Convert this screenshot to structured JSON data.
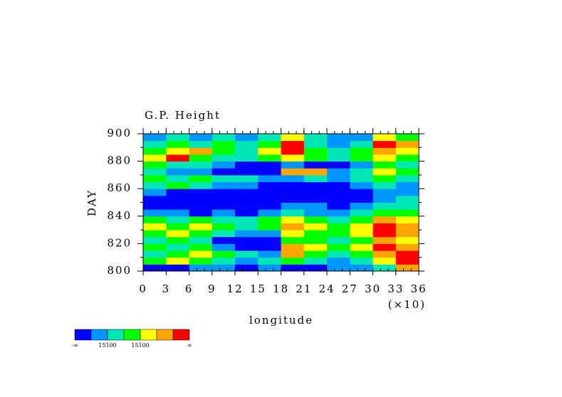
{
  "chart_data": {
    "type": "heatmap",
    "title": "G.P. Height",
    "xlabel": "longitude",
    "xscale_note": "(×10)",
    "ylabel": "DAY",
    "xlim": [
      0,
      36
    ],
    "xticks": [
      0,
      3,
      6,
      9,
      12,
      15,
      18,
      21,
      24,
      27,
      30,
      33,
      36
    ],
    "ylim": [
      800,
      900
    ],
    "yticks": [
      800,
      820,
      840,
      860,
      880,
      900
    ],
    "colors": [
      "#0000ff",
      "#0096ff",
      "#00e6b4",
      "#00ff00",
      "#ffff00",
      "#ffa500",
      "#ff0000"
    ],
    "z": [
      [
        0,
        0,
        1,
        1,
        0,
        1,
        0,
        0,
        1,
        1,
        2,
        5
      ],
      [
        3,
        4,
        3,
        2,
        1,
        2,
        3,
        2,
        1,
        2,
        4,
        6
      ],
      [
        2,
        3,
        4,
        3,
        2,
        1,
        5,
        3,
        2,
        3,
        5,
        6
      ],
      [
        3,
        2,
        3,
        1,
        0,
        0,
        5,
        4,
        3,
        4,
        6,
        5
      ],
      [
        2,
        3,
        2,
        0,
        0,
        0,
        3,
        3,
        2,
        3,
        5,
        4
      ],
      [
        3,
        4,
        3,
        2,
        1,
        1,
        4,
        3,
        3,
        4,
        6,
        5
      ],
      [
        4,
        3,
        4,
        3,
        2,
        3,
        5,
        4,
        3,
        4,
        6,
        5
      ],
      [
        3,
        2,
        3,
        2,
        2,
        3,
        4,
        3,
        2,
        3,
        5,
        4
      ],
      [
        1,
        1,
        0,
        1,
        0,
        1,
        2,
        1,
        1,
        2,
        3,
        3
      ],
      [
        0,
        0,
        0,
        0,
        0,
        0,
        1,
        1,
        0,
        1,
        2,
        2
      ],
      [
        0,
        0,
        0,
        0,
        0,
        0,
        0,
        0,
        0,
        0,
        1,
        2
      ],
      [
        1,
        0,
        0,
        0,
        0,
        0,
        0,
        0,
        0,
        0,
        1,
        1
      ],
      [
        2,
        3,
        2,
        1,
        1,
        0,
        0,
        0,
        0,
        1,
        2,
        1
      ],
      [
        3,
        2,
        3,
        2,
        2,
        1,
        1,
        2,
        1,
        2,
        3,
        2
      ],
      [
        2,
        1,
        1,
        0,
        0,
        0,
        5,
        5,
        1,
        2,
        4,
        3
      ],
      [
        3,
        2,
        2,
        1,
        0,
        0,
        1,
        0,
        0,
        1,
        3,
        2
      ],
      [
        4,
        6,
        3,
        2,
        2,
        3,
        4,
        3,
        2,
        3,
        4,
        3
      ],
      [
        3,
        4,
        5,
        3,
        2,
        4,
        6,
        3,
        2,
        3,
        5,
        4
      ],
      [
        2,
        3,
        2,
        3,
        2,
        3,
        6,
        2,
        1,
        2,
        6,
        5
      ],
      [
        1,
        2,
        1,
        2,
        1,
        2,
        4,
        2,
        1,
        1,
        4,
        3
      ]
    ],
    "colorbar_labels": [
      "-∞",
      "15100",
      "15100",
      "∞"
    ]
  }
}
